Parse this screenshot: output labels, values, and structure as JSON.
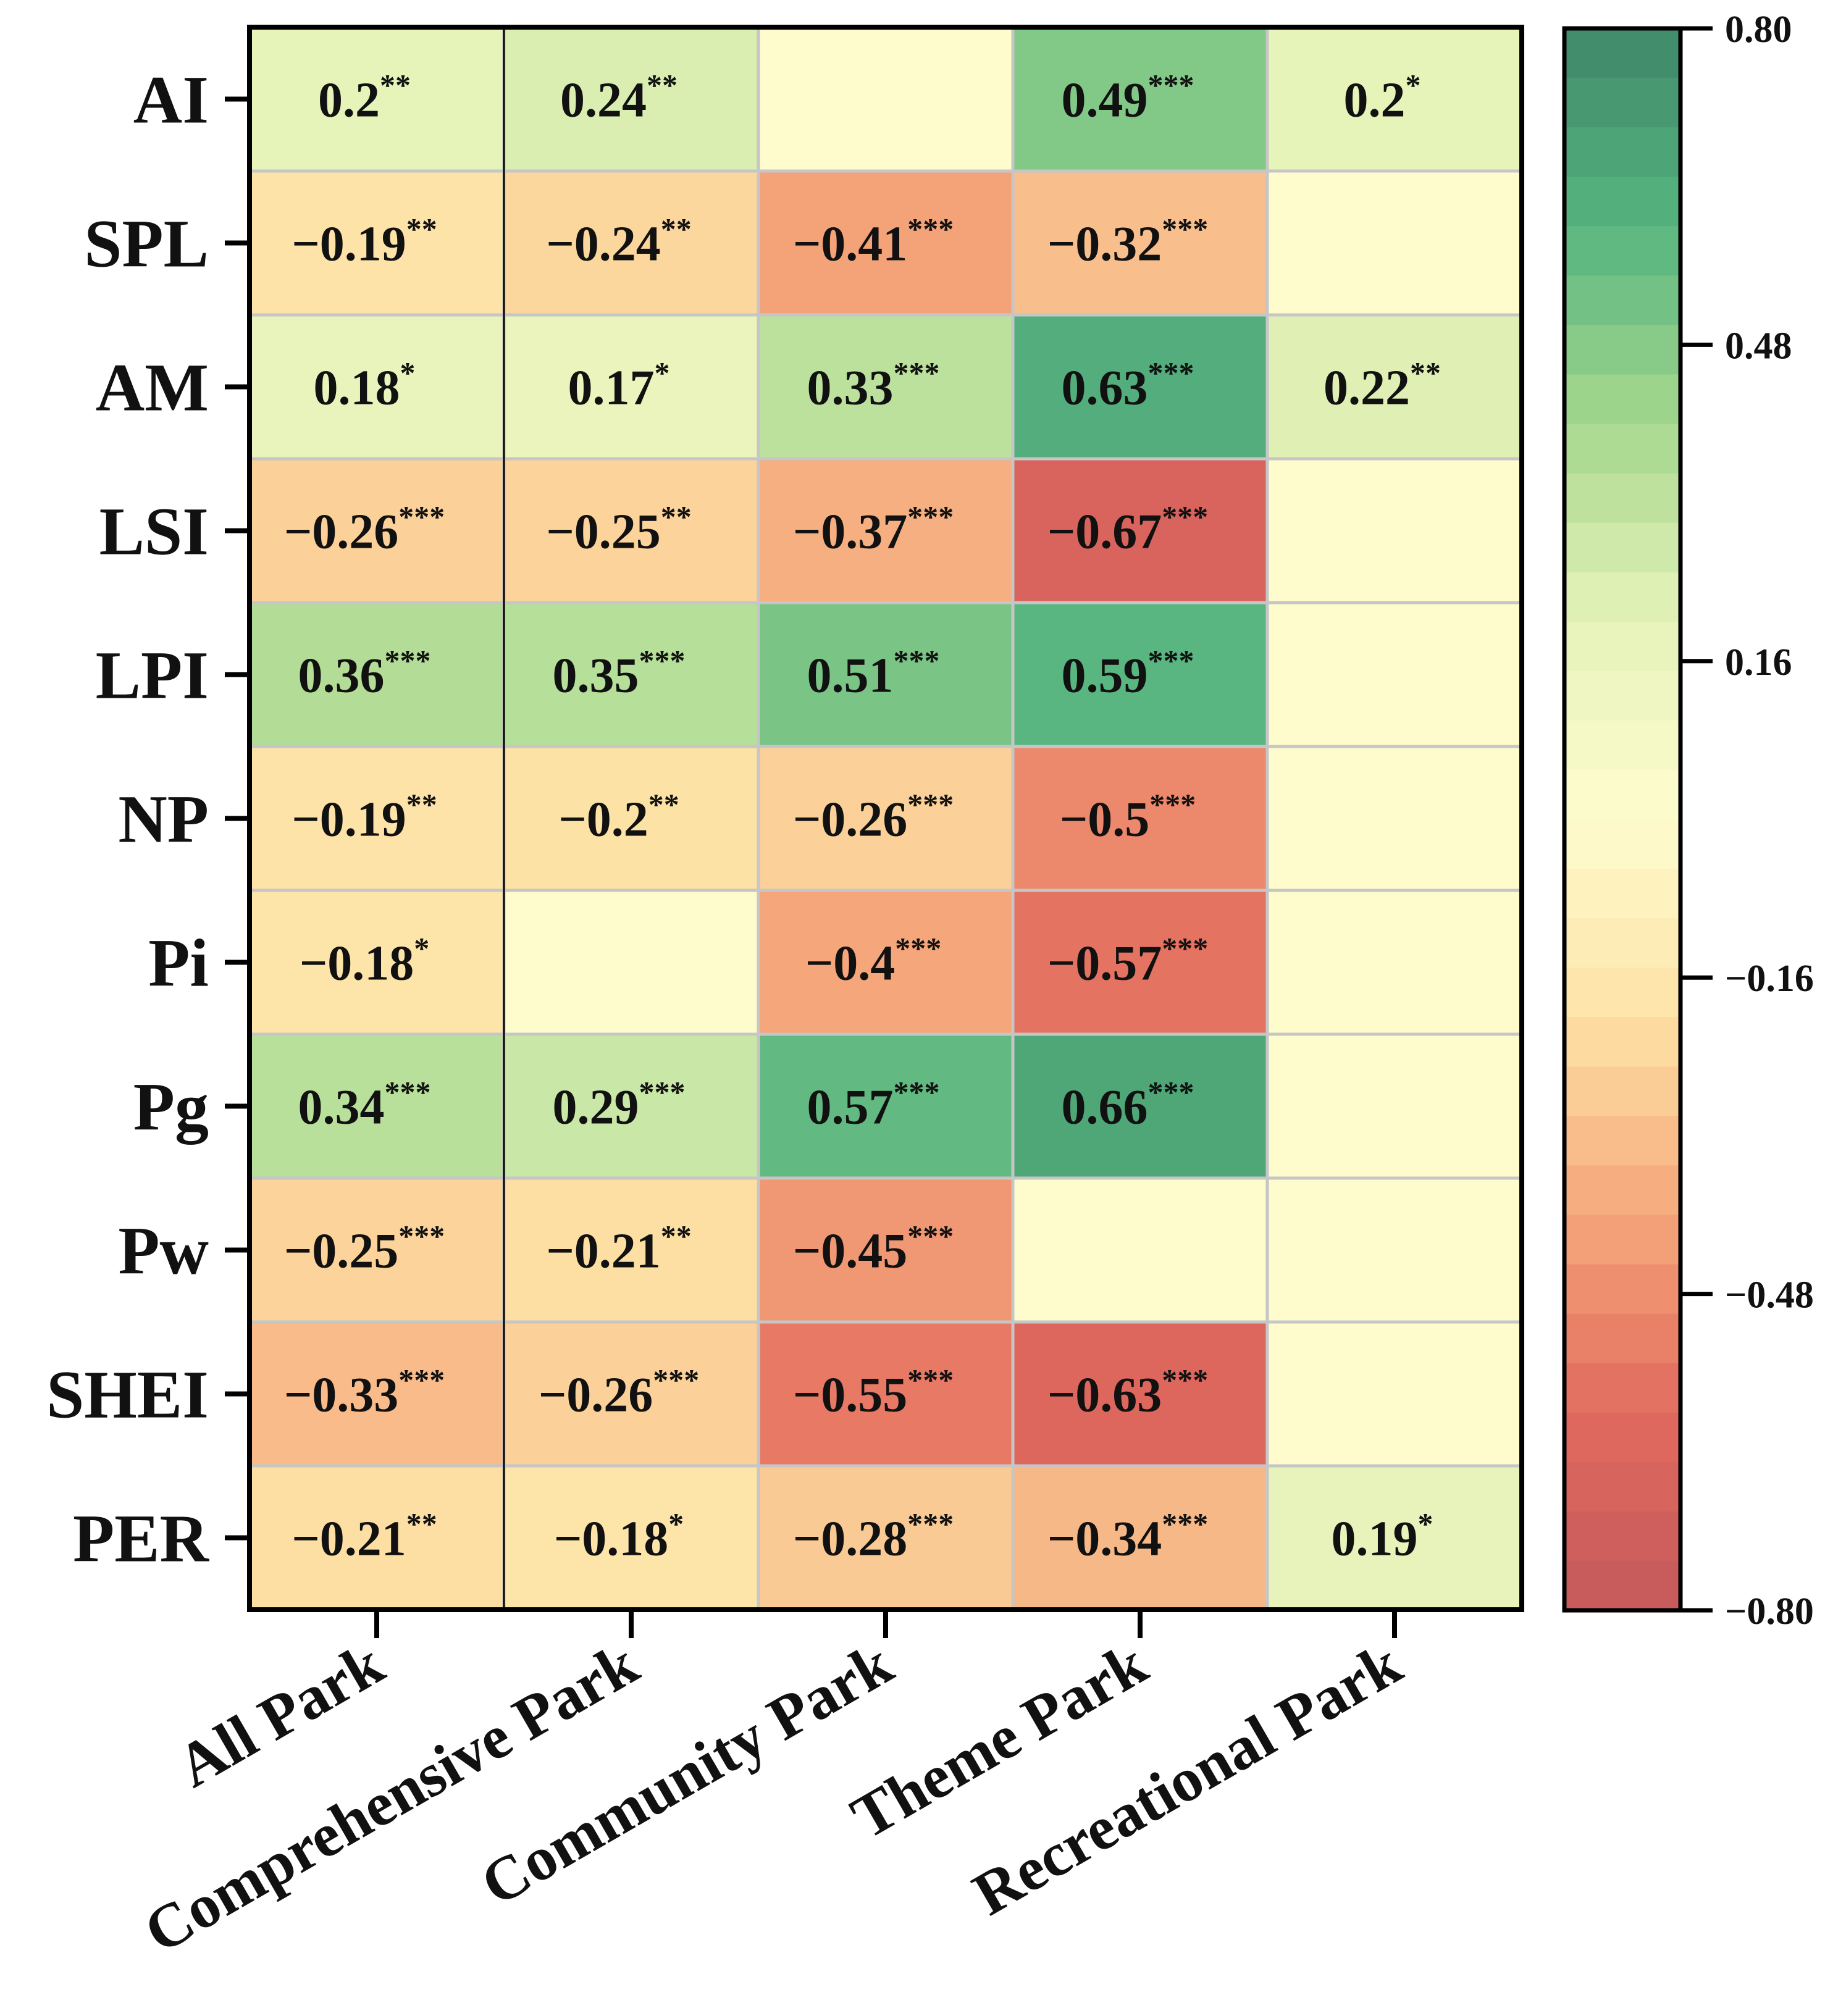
{
  "chart_data": {
    "type": "heatmap",
    "title": "",
    "xlabel": "",
    "ylabel": "",
    "rows": [
      "AI",
      "SPL",
      "AM",
      "LSI",
      "LPI",
      "NP",
      "Pi",
      "Pg",
      "Pw",
      "SHEI",
      "PER"
    ],
    "columns": [
      "All Park",
      "Comprehensive Park",
      "Community Park",
      "Theme Park",
      "Recreational Park"
    ],
    "values": [
      [
        0.2,
        0.24,
        null,
        0.49,
        0.2
      ],
      [
        -0.19,
        -0.24,
        -0.41,
        -0.32,
        null
      ],
      [
        0.18,
        0.17,
        0.33,
        0.63,
        0.22
      ],
      [
        -0.26,
        -0.25,
        -0.37,
        -0.67,
        null
      ],
      [
        0.36,
        0.35,
        0.51,
        0.59,
        null
      ],
      [
        -0.19,
        -0.2,
        -0.26,
        -0.5,
        null
      ],
      [
        -0.18,
        null,
        -0.4,
        -0.57,
        null
      ],
      [
        0.34,
        0.29,
        0.57,
        0.66,
        null
      ],
      [
        -0.25,
        -0.21,
        -0.45,
        null,
        null
      ],
      [
        -0.33,
        -0.26,
        -0.55,
        -0.63,
        null
      ],
      [
        -0.21,
        -0.18,
        -0.28,
        -0.34,
        0.19
      ]
    ],
    "labels": [
      [
        "0.2",
        "0.24",
        "",
        "0.49",
        "0.2"
      ],
      [
        "−0.19",
        "−0.24",
        "−0.41",
        "−0.32",
        ""
      ],
      [
        "0.18",
        "0.17",
        "0.33",
        "0.63",
        "0.22"
      ],
      [
        "−0.26",
        "−0.25",
        "−0.37",
        "−0.67",
        ""
      ],
      [
        "0.36",
        "0.35",
        "0.51",
        "0.59",
        ""
      ],
      [
        "−0.19",
        "−0.2",
        "−0.26",
        "−0.5",
        ""
      ],
      [
        "−0.18",
        "",
        "−0.4",
        "−0.57",
        ""
      ],
      [
        "0.34",
        "0.29",
        "0.57",
        "0.66",
        ""
      ],
      [
        "−0.25",
        "−0.21",
        "−0.45",
        "",
        ""
      ],
      [
        "−0.33",
        "−0.26",
        "−0.55",
        "−0.63",
        ""
      ],
      [
        "−0.21",
        "−0.18",
        "−0.28",
        "−0.34",
        "0.19"
      ]
    ],
    "significance": [
      [
        "**",
        "**",
        "",
        "***",
        "*"
      ],
      [
        "**",
        "**",
        "***",
        "***",
        ""
      ],
      [
        "*",
        "*",
        "***",
        "***",
        "**"
      ],
      [
        "***",
        "**",
        "***",
        "***",
        ""
      ],
      [
        "***",
        "***",
        "***",
        "***",
        ""
      ],
      [
        "**",
        "**",
        "***",
        "***",
        ""
      ],
      [
        "*",
        "",
        "***",
        "***",
        ""
      ],
      [
        "***",
        "***",
        "***",
        "***",
        ""
      ],
      [
        "***",
        "**",
        "***",
        "",
        ""
      ],
      [
        "***",
        "***",
        "***",
        "***",
        ""
      ],
      [
        "**",
        "*",
        "***",
        "***",
        "*"
      ]
    ],
    "colorbar": {
      "range": [
        -0.8,
        0.8
      ],
      "tick_values": [
        0.8,
        0.48,
        0.16,
        -0.16,
        -0.48,
        -0.8
      ],
      "tick_labels": [
        "0.80",
        "0.48",
        "0.16",
        "−0.16",
        "−0.48",
        "−0.80"
      ],
      "colors": [
        "#c4595a",
        "#e26a5e",
        "#f5a67a",
        "#fde2a6",
        "#fefccd",
        "#e6f3b9",
        "#a6d88e",
        "#56b47f",
        "#3f8868"
      ],
      "empty_color": "#fefccd"
    }
  }
}
